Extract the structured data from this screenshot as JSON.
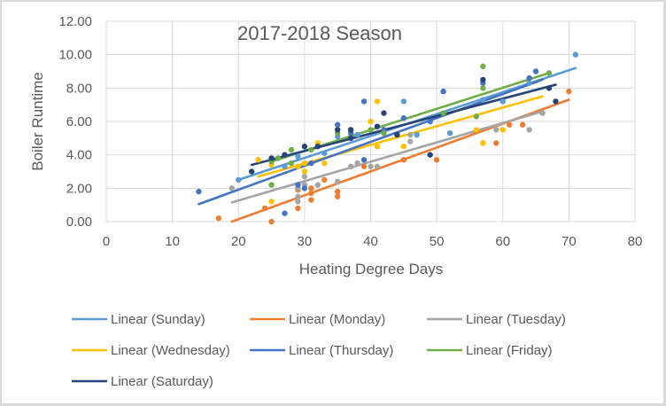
{
  "chart_data": {
    "type": "scatter",
    "title": "2017-2018 Season",
    "xlabel": "Heating Degree Days",
    "ylabel": "Boiler Runtime",
    "xlim": [
      0,
      80
    ],
    "ylim": [
      0,
      12
    ],
    "x_ticks": [
      "0",
      "10",
      "20",
      "30",
      "40",
      "50",
      "60",
      "70",
      "80"
    ],
    "y_ticks": [
      "0.00",
      "2.00",
      "4.00",
      "6.00",
      "8.00",
      "10.00",
      "12.00"
    ],
    "grid": true,
    "legend_position": "bottom",
    "series": [
      {
        "name": "Sunday",
        "legend_label": "Linear (Sunday)",
        "color": "#5B9BD5",
        "trendline": [
          [
            20,
            2.5
          ],
          [
            71,
            9.2
          ]
        ],
        "points": [
          [
            20,
            2.5
          ],
          [
            27,
            3.3
          ],
          [
            29,
            3.9
          ],
          [
            33,
            4.1
          ],
          [
            35,
            5.1
          ],
          [
            38,
            5.2
          ],
          [
            45,
            7.2
          ],
          [
            47,
            5.2
          ],
          [
            52,
            5.3
          ],
          [
            57,
            7.3
          ],
          [
            60,
            7.2
          ],
          [
            64,
            8.3
          ],
          [
            71,
            10.0
          ]
        ]
      },
      {
        "name": "Monday",
        "legend_label": "Linear (Monday)",
        "color": "#ED7D31",
        "trendline": [
          [
            19,
            0.0
          ],
          [
            70,
            7.3
          ]
        ],
        "points": [
          [
            17,
            0.2
          ],
          [
            25,
            0.0
          ],
          [
            24,
            0.8
          ],
          [
            29,
            0.8
          ],
          [
            29,
            1.9
          ],
          [
            31,
            1.3
          ],
          [
            31,
            1.7
          ],
          [
            31,
            2.0
          ],
          [
            33,
            2.5
          ],
          [
            35,
            1.5
          ],
          [
            35,
            1.8
          ],
          [
            39,
            3.3
          ],
          [
            45,
            3.7
          ],
          [
            50,
            3.7
          ],
          [
            57,
            4.7
          ],
          [
            59,
            4.7
          ],
          [
            61,
            5.8
          ],
          [
            63,
            5.8
          ],
          [
            70,
            7.8
          ]
        ]
      },
      {
        "name": "Tuesday",
        "legend_label": "Linear (Tuesday)",
        "color": "#A5A5A5",
        "trendline": [
          [
            19,
            1.15
          ],
          [
            66,
            6.6
          ]
        ],
        "points": [
          [
            19,
            2.0
          ],
          [
            29,
            1.2
          ],
          [
            29,
            1.5
          ],
          [
            29,
            2.0
          ],
          [
            30,
            2.2
          ],
          [
            30,
            2.7
          ],
          [
            32,
            2.2
          ],
          [
            35,
            2.4
          ],
          [
            37,
            3.3
          ],
          [
            38,
            3.5
          ],
          [
            40,
            3.3
          ],
          [
            41,
            3.3
          ],
          [
            46,
            4.8
          ],
          [
            46,
            5.2
          ],
          [
            59,
            5.5
          ],
          [
            64,
            5.5
          ],
          [
            66,
            6.5
          ]
        ]
      },
      {
        "name": "Wednesday",
        "legend_label": "Linear (Wednesday)",
        "color": "#FFC000",
        "trendline": [
          [
            23,
            2.7
          ],
          [
            66,
            7.5
          ]
        ],
        "points": [
          [
            23,
            3.7
          ],
          [
            25,
            1.2
          ],
          [
            25,
            3.4
          ],
          [
            29,
            3.3
          ],
          [
            30,
            3.0
          ],
          [
            30,
            3.5
          ],
          [
            32,
            4.7
          ],
          [
            33,
            3.5
          ],
          [
            40,
            6.0
          ],
          [
            41,
            7.2
          ],
          [
            41,
            4.5
          ],
          [
            45,
            4.5
          ],
          [
            56,
            5.5
          ],
          [
            57,
            4.7
          ],
          [
            60,
            5.5
          ]
        ]
      },
      {
        "name": "Thursday",
        "legend_label": "Linear (Thursday)",
        "color": "#4472C4",
        "trendline": [
          [
            14,
            1.05
          ],
          [
            66,
            8.5
          ]
        ],
        "points": [
          [
            14,
            1.8
          ],
          [
            27,
            0.5
          ],
          [
            29,
            2.2
          ],
          [
            30,
            2.0
          ],
          [
            31,
            3.5
          ],
          [
            35,
            5.8
          ],
          [
            37,
            5.3
          ],
          [
            39,
            7.2
          ],
          [
            39,
            3.7
          ],
          [
            42,
            5.5
          ],
          [
            45,
            6.2
          ],
          [
            49,
            6.0
          ],
          [
            51,
            7.8
          ],
          [
            57,
            8.3
          ],
          [
            64,
            8.6
          ],
          [
            65,
            9.0
          ]
        ]
      },
      {
        "name": "Friday",
        "legend_label": "Linear (Friday)",
        "color": "#70AD47",
        "trendline": [
          [
            25,
            3.6
          ],
          [
            67,
            8.9
          ]
        ],
        "points": [
          [
            25,
            2.2
          ],
          [
            25,
            3.6
          ],
          [
            26,
            3.8
          ],
          [
            28,
            3.5
          ],
          [
            28,
            4.3
          ],
          [
            31,
            4.3
          ],
          [
            35,
            5.3
          ],
          [
            37,
            5.5
          ],
          [
            40,
            5.5
          ],
          [
            42,
            5.3
          ],
          [
            51,
            6.5
          ],
          [
            56,
            6.3
          ],
          [
            57,
            9.3
          ],
          [
            57,
            8.0
          ],
          [
            67,
            8.9
          ]
        ]
      },
      {
        "name": "Saturday",
        "legend_label": "Linear (Saturday)",
        "color": "#264478",
        "trendline": [
          [
            22,
            3.4
          ],
          [
            68,
            8.2
          ]
        ],
        "points": [
          [
            22,
            3.0
          ],
          [
            25,
            3.8
          ],
          [
            27,
            4.0
          ],
          [
            30,
            4.5
          ],
          [
            32,
            4.5
          ],
          [
            35,
            5.5
          ],
          [
            37,
            5.5
          ],
          [
            37,
            5.0
          ],
          [
            41,
            5.7
          ],
          [
            42,
            6.5
          ],
          [
            44,
            5.2
          ],
          [
            49,
            4.0
          ],
          [
            57,
            8.5
          ],
          [
            67,
            8.0
          ],
          [
            68,
            7.2
          ]
        ]
      }
    ]
  }
}
